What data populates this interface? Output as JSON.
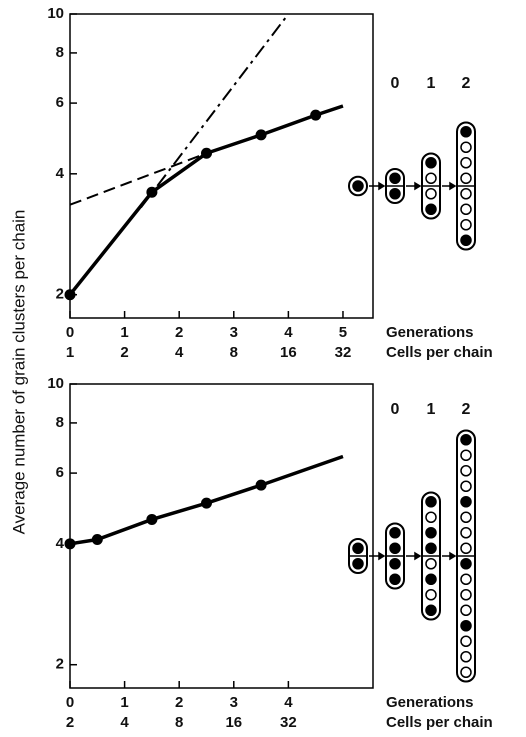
{
  "chart_data": [
    {
      "type": "line",
      "log_y": true,
      "ylim": [
        1.75,
        10
      ],
      "yticks": [
        2,
        4,
        6,
        8,
        10
      ],
      "xlim": [
        0,
        5.55
      ],
      "xticks": [
        0,
        1,
        2,
        3,
        4,
        5
      ],
      "cells": [
        1,
        2,
        4,
        8,
        16,
        32
      ],
      "xlabel": "Generations",
      "xlabel2": "Cells per chain",
      "chain_labels": [
        "0",
        "1",
        "2"
      ],
      "series": [
        {
          "style": "solid",
          "color": "#000",
          "x": [
            0,
            1.5,
            2.5,
            3.5,
            4.5,
            5.0
          ],
          "values": [
            2,
            3.6,
            4.5,
            5.0,
            5.6,
            5.9
          ],
          "markers": [
            true,
            true,
            true,
            true,
            true,
            false
          ]
        },
        {
          "style": "dashed",
          "color": "#000",
          "x": [
            0,
            2.5
          ],
          "values": [
            3.35,
            4.5
          ]
        },
        {
          "style": "dashdot",
          "color": "#000",
          "x": [
            1.3,
            4.0
          ],
          "values": [
            3.3,
            10
          ]
        }
      ]
    },
    {
      "type": "line",
      "log_y": true,
      "ylim": [
        1.75,
        10
      ],
      "yticks": [
        2,
        4,
        6,
        8,
        10
      ],
      "xlim": [
        0,
        5.55
      ],
      "xticks": [
        0,
        1,
        2,
        3,
        4
      ],
      "cells": [
        2,
        4,
        8,
        16,
        32
      ],
      "xlabel": "Generations",
      "xlabel2": "Cells per chain",
      "chain_labels": [
        "0",
        "1",
        "2"
      ],
      "series": [
        {
          "style": "solid",
          "color": "#000",
          "x": [
            0,
            0.5,
            1.5,
            2.5,
            3.5,
            5.0
          ],
          "values": [
            4,
            4.1,
            4.6,
            5.05,
            5.6,
            6.6
          ],
          "markers": [
            true,
            true,
            true,
            true,
            true,
            false
          ]
        }
      ]
    }
  ],
  "ylabel": "Average number of grain clusters per chain"
}
